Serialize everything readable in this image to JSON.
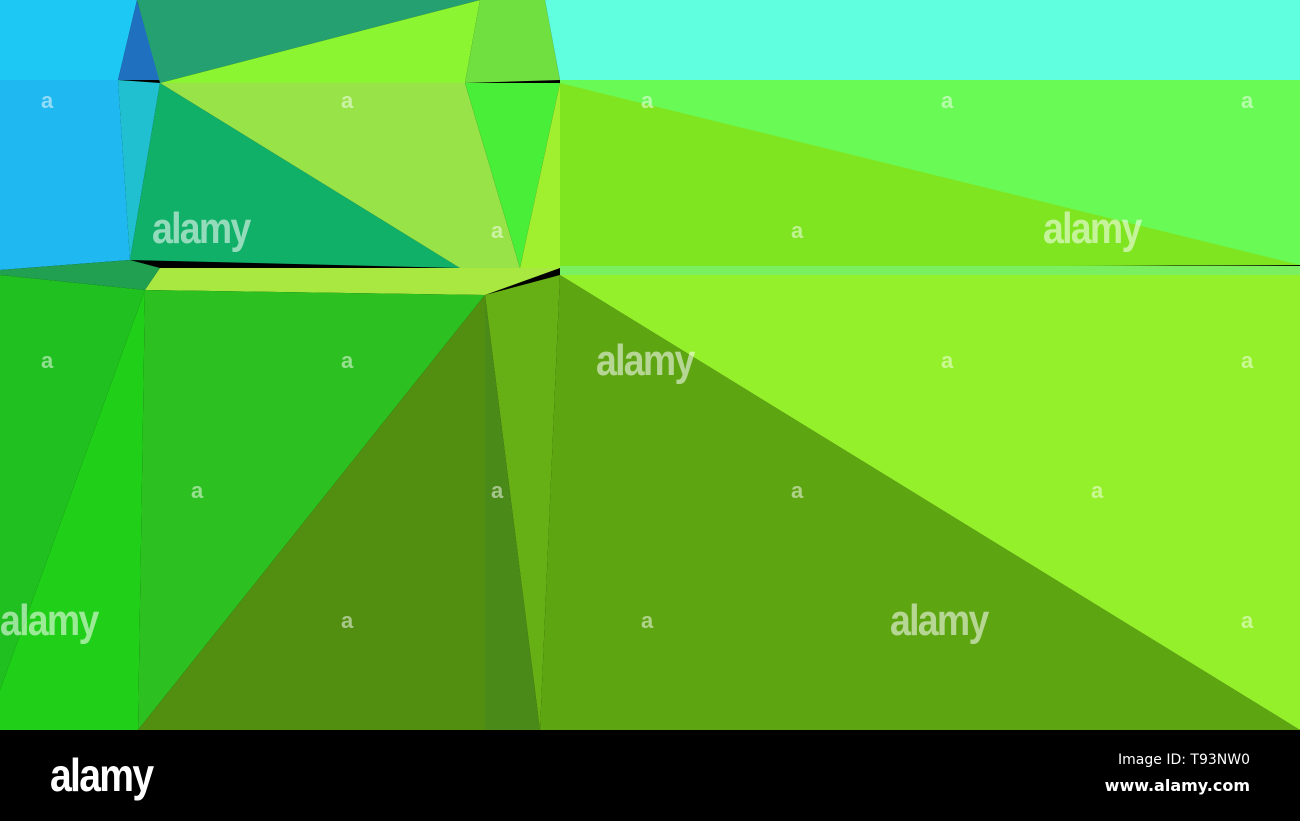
{
  "image": {
    "watermark_text": "alamy",
    "watermark_mark": "a",
    "palette": [
      "#1ec8f5",
      "#25a070",
      "#8af530",
      "#60ffe0",
      "#6afa55",
      "#7ee520",
      "#10b068",
      "#22c020",
      "#528f10",
      "#5ea512",
      "#94f02a"
    ]
  },
  "footer": {
    "logo": "alamy",
    "image_id": "Image ID: T93NW0",
    "website": "www.alamy.com"
  }
}
